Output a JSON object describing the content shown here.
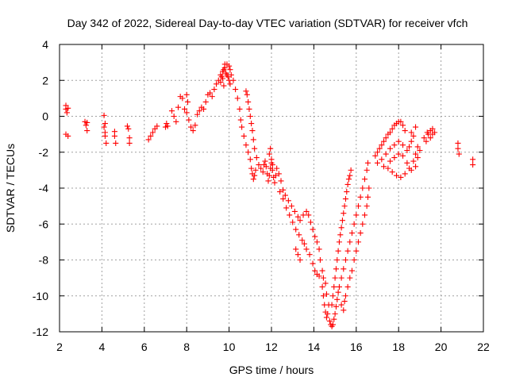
{
  "chart_data": {
    "type": "scatter",
    "title": "Day 342 of 2022, Sidereal Day-to-day VTEC variation (SDTVAR) for receiver vfch",
    "xlabel": "GPS time / hours",
    "ylabel": "SDTVAR / TECUs",
    "xlim": [
      2,
      22
    ],
    "ylim": [
      -12,
      4
    ],
    "xticks": [
      2,
      4,
      6,
      8,
      10,
      12,
      14,
      16,
      18,
      20,
      22
    ],
    "yticks": [
      4,
      2,
      0,
      -2,
      -4,
      -6,
      -8,
      -10,
      -12
    ],
    "grid": true,
    "marker": "plus",
    "series": [
      {
        "name": "SDTVAR",
        "color": "#ff0000",
        "points": [
          [
            2.3,
            0.6
          ],
          [
            2.3,
            0.4
          ],
          [
            2.35,
            0.2
          ],
          [
            2.4,
            0.45
          ],
          [
            2.3,
            -1.0
          ],
          [
            2.4,
            -1.1
          ],
          [
            3.2,
            -0.3
          ],
          [
            3.25,
            -0.5
          ],
          [
            3.3,
            -0.8
          ],
          [
            3.3,
            -0.35
          ],
          [
            4.1,
            0.05
          ],
          [
            4.1,
            -0.6
          ],
          [
            4.15,
            -0.9
          ],
          [
            4.15,
            -1.1
          ],
          [
            4.2,
            -1.5
          ],
          [
            4.15,
            -0.4
          ],
          [
            4.6,
            -0.85
          ],
          [
            4.6,
            -1.1
          ],
          [
            4.65,
            -1.5
          ],
          [
            5.2,
            -0.55
          ],
          [
            5.25,
            -0.7
          ],
          [
            5.3,
            -1.2
          ],
          [
            5.3,
            -1.5
          ],
          [
            6.2,
            -1.3
          ],
          [
            6.3,
            -1.1
          ],
          [
            6.4,
            -0.9
          ],
          [
            6.5,
            -0.7
          ],
          [
            6.6,
            -0.55
          ],
          [
            7.0,
            -0.6
          ],
          [
            7.05,
            -0.4
          ],
          [
            7.1,
            -0.55
          ],
          [
            7.3,
            0.3
          ],
          [
            7.4,
            0.0
          ],
          [
            7.5,
            -0.3
          ],
          [
            7.6,
            0.5
          ],
          [
            7.7,
            1.1
          ],
          [
            7.8,
            1.0
          ],
          [
            7.9,
            0.4
          ],
          [
            8.0,
            0.2
          ],
          [
            8.1,
            -0.2
          ],
          [
            8.2,
            -0.6
          ],
          [
            8.3,
            -0.8
          ],
          [
            8.4,
            -0.5
          ],
          [
            8.0,
            1.2
          ],
          [
            8.05,
            0.8
          ],
          [
            8.5,
            0.1
          ],
          [
            8.6,
            0.3
          ],
          [
            8.7,
            0.5
          ],
          [
            8.8,
            0.4
          ],
          [
            8.9,
            0.8
          ],
          [
            9.0,
            1.2
          ],
          [
            9.1,
            1.3
          ],
          [
            9.2,
            1.1
          ],
          [
            9.3,
            1.5
          ],
          [
            9.4,
            1.8
          ],
          [
            9.5,
            2.0
          ],
          [
            9.6,
            2.3
          ],
          [
            9.7,
            2.5
          ],
          [
            9.8,
            2.7
          ],
          [
            9.9,
            2.9
          ],
          [
            10.0,
            2.8
          ],
          [
            10.05,
            2.6
          ],
          [
            10.1,
            2.3
          ],
          [
            9.85,
            2.4
          ],
          [
            9.9,
            2.3
          ],
          [
            9.95,
            2.2
          ],
          [
            10.0,
            2.0
          ],
          [
            10.05,
            1.8
          ],
          [
            9.6,
            1.9
          ],
          [
            9.7,
            2.1
          ],
          [
            9.75,
            1.7
          ],
          [
            9.65,
            2.2
          ],
          [
            9.75,
            2.6
          ],
          [
            9.8,
            2.9
          ],
          [
            10.2,
            2.0
          ],
          [
            10.3,
            1.5
          ],
          [
            10.4,
            1.0
          ],
          [
            10.5,
            0.4
          ],
          [
            10.55,
            -0.2
          ],
          [
            10.6,
            -0.6
          ],
          [
            10.7,
            -1.1
          ],
          [
            10.8,
            -1.6
          ],
          [
            10.9,
            -2.0
          ],
          [
            11.0,
            -2.4
          ],
          [
            11.05,
            -2.9
          ],
          [
            11.1,
            -3.2
          ],
          [
            11.15,
            -3.5
          ],
          [
            11.2,
            -3.3
          ],
          [
            11.25,
            -3.0
          ],
          [
            10.8,
            1.4
          ],
          [
            10.85,
            1.2
          ],
          [
            10.9,
            0.8
          ],
          [
            10.95,
            0.4
          ],
          [
            11.0,
            0.0
          ],
          [
            11.05,
            -0.4
          ],
          [
            11.1,
            -0.8
          ],
          [
            11.15,
            -1.3
          ],
          [
            11.2,
            -1.8
          ],
          [
            11.3,
            -2.3
          ],
          [
            11.4,
            -2.7
          ],
          [
            11.5,
            -2.9
          ],
          [
            11.6,
            -3.1
          ],
          [
            11.65,
            -2.7
          ],
          [
            11.7,
            -2.5
          ],
          [
            11.75,
            -2.8
          ],
          [
            11.8,
            -3.2
          ],
          [
            11.85,
            -3.6
          ],
          [
            11.9,
            -3.3
          ],
          [
            11.95,
            -2.9
          ],
          [
            12.0,
            -2.6
          ],
          [
            12.05,
            -3.0
          ],
          [
            12.1,
            -3.4
          ],
          [
            12.15,
            -3.7
          ],
          [
            12.2,
            -3.3
          ],
          [
            12.25,
            -2.9
          ],
          [
            11.9,
            -2.1
          ],
          [
            11.95,
            -1.8
          ],
          [
            12.0,
            -2.4
          ],
          [
            12.05,
            -2.7
          ],
          [
            12.35,
            -3.2
          ],
          [
            12.45,
            -3.6
          ],
          [
            12.55,
            -4.1
          ],
          [
            12.65,
            -4.4
          ],
          [
            12.8,
            -4.7
          ],
          [
            12.95,
            -5.0
          ],
          [
            13.1,
            -5.3
          ],
          [
            13.25,
            -5.6
          ],
          [
            13.35,
            -5.8
          ],
          [
            13.5,
            -5.5
          ],
          [
            13.65,
            -5.3
          ],
          [
            13.75,
            -5.5
          ],
          [
            13.85,
            -5.9
          ],
          [
            13.95,
            -6.3
          ],
          [
            14.05,
            -6.7
          ],
          [
            14.15,
            -7.0
          ],
          [
            14.25,
            -7.4
          ],
          [
            14.3,
            -8.0
          ],
          [
            14.4,
            -8.6
          ],
          [
            14.45,
            -9.0
          ],
          [
            12.4,
            -4.2
          ],
          [
            12.55,
            -4.6
          ],
          [
            12.7,
            -5.1
          ],
          [
            12.85,
            -5.5
          ],
          [
            13.0,
            -5.9
          ],
          [
            13.15,
            -6.3
          ],
          [
            13.3,
            -6.6
          ],
          [
            13.45,
            -6.9
          ],
          [
            13.55,
            -7.1
          ],
          [
            13.65,
            -7.4
          ],
          [
            13.8,
            -7.7
          ],
          [
            13.95,
            -8.2
          ],
          [
            14.05,
            -8.6
          ],
          [
            14.15,
            -8.8
          ],
          [
            14.25,
            -8.9
          ],
          [
            13.15,
            -7.4
          ],
          [
            13.25,
            -7.7
          ],
          [
            13.35,
            -8.0
          ],
          [
            14.4,
            -9.5
          ],
          [
            14.45,
            -10.0
          ],
          [
            14.5,
            -10.5
          ],
          [
            14.55,
            -10.9
          ],
          [
            14.6,
            -11.2
          ],
          [
            14.65,
            -11.0
          ],
          [
            14.7,
            -10.5
          ],
          [
            14.6,
            -9.9
          ],
          [
            14.55,
            -9.3
          ],
          [
            14.75,
            -11.4
          ],
          [
            14.8,
            -11.6
          ],
          [
            14.85,
            -11.7
          ],
          [
            14.9,
            -11.6
          ],
          [
            14.95,
            -11.3
          ],
          [
            15.0,
            -11.0
          ],
          [
            15.05,
            -10.6
          ],
          [
            15.1,
            -10.2
          ],
          [
            15.15,
            -9.8
          ],
          [
            14.85,
            -10.5
          ],
          [
            14.9,
            -10.0
          ],
          [
            14.95,
            -9.5
          ],
          [
            15.0,
            -9.0
          ],
          [
            15.05,
            -8.5
          ],
          [
            15.1,
            -8.0
          ],
          [
            15.15,
            -7.5
          ],
          [
            15.2,
            -7.0
          ],
          [
            15.25,
            -6.6
          ],
          [
            15.3,
            -6.2
          ],
          [
            15.35,
            -5.8
          ],
          [
            15.4,
            -5.4
          ],
          [
            15.45,
            -5.0
          ],
          [
            15.5,
            -4.6
          ],
          [
            15.55,
            -4.2
          ],
          [
            15.6,
            -3.8
          ],
          [
            15.65,
            -3.5
          ],
          [
            15.7,
            -3.3
          ],
          [
            15.75,
            -3.0
          ],
          [
            15.2,
            -9.5
          ],
          [
            15.3,
            -9.0
          ],
          [
            15.4,
            -8.5
          ],
          [
            15.5,
            -8.0
          ],
          [
            15.6,
            -7.5
          ],
          [
            15.7,
            -7.0
          ],
          [
            15.8,
            -6.5
          ],
          [
            15.9,
            -6.0
          ],
          [
            16.0,
            -5.5
          ],
          [
            16.1,
            -5.0
          ],
          [
            16.2,
            -4.5
          ],
          [
            16.3,
            -4.0
          ],
          [
            16.4,
            -3.5
          ],
          [
            16.5,
            -3.0
          ],
          [
            16.55,
            -2.6
          ],
          [
            15.5,
            -10.0
          ],
          [
            15.6,
            -9.5
          ],
          [
            15.7,
            -9.0
          ],
          [
            15.8,
            -8.6
          ],
          [
            15.9,
            -8.0
          ],
          [
            16.0,
            -7.5
          ],
          [
            16.1,
            -7.0
          ],
          [
            16.2,
            -6.5
          ],
          [
            16.3,
            -6.0
          ],
          [
            16.4,
            -5.5
          ],
          [
            16.5,
            -5.0
          ],
          [
            16.55,
            -4.5
          ],
          [
            16.6,
            -4.0
          ],
          [
            15.3,
            -10.5
          ],
          [
            15.4,
            -10.8
          ],
          [
            15.45,
            -10.3
          ],
          [
            16.9,
            -2.2
          ],
          [
            17.0,
            -2.0
          ],
          [
            17.1,
            -1.8
          ],
          [
            17.2,
            -1.6
          ],
          [
            17.3,
            -1.4
          ],
          [
            17.4,
            -1.2
          ],
          [
            17.5,
            -1.0
          ],
          [
            17.6,
            -0.9
          ],
          [
            17.7,
            -0.7
          ],
          [
            17.8,
            -0.5
          ],
          [
            17.9,
            -0.4
          ],
          [
            18.0,
            -0.3
          ],
          [
            18.1,
            -0.3
          ],
          [
            18.2,
            -0.5
          ],
          [
            18.3,
            -0.8
          ],
          [
            17.0,
            -2.6
          ],
          [
            17.2,
            -2.4
          ],
          [
            17.4,
            -2.1
          ],
          [
            17.6,
            -1.8
          ],
          [
            17.8,
            -1.6
          ],
          [
            18.0,
            -1.4
          ],
          [
            18.2,
            -1.6
          ],
          [
            18.4,
            -1.9
          ],
          [
            18.5,
            -1.7
          ],
          [
            18.6,
            -1.4
          ],
          [
            17.3,
            -2.8
          ],
          [
            17.5,
            -2.9
          ],
          [
            17.7,
            -3.1
          ],
          [
            17.9,
            -3.3
          ],
          [
            18.1,
            -3.4
          ],
          [
            18.3,
            -3.2
          ],
          [
            18.5,
            -2.9
          ],
          [
            18.7,
            -2.5
          ],
          [
            18.8,
            -2.1
          ],
          [
            18.9,
            -1.7
          ],
          [
            17.6,
            -2.5
          ],
          [
            17.8,
            -2.3
          ],
          [
            18.0,
            -2.1
          ],
          [
            18.2,
            -2.2
          ],
          [
            18.4,
            -2.6
          ],
          [
            18.6,
            -3.0
          ],
          [
            18.8,
            -2.8
          ],
          [
            18.9,
            -2.3
          ],
          [
            19.0,
            -1.9
          ],
          [
            18.6,
            -0.9
          ],
          [
            18.7,
            -1.1
          ],
          [
            18.8,
            -0.6
          ],
          [
            19.2,
            -1.2
          ],
          [
            19.3,
            -1.4
          ],
          [
            19.4,
            -1.0
          ],
          [
            19.5,
            -0.8
          ],
          [
            19.6,
            -1.0
          ],
          [
            19.7,
            -0.9
          ],
          [
            19.5,
            -1.2
          ],
          [
            19.35,
            -0.9
          ],
          [
            19.6,
            -0.7
          ],
          [
            20.8,
            -1.5
          ],
          [
            20.8,
            -1.8
          ],
          [
            20.85,
            -2.1
          ],
          [
            21.5,
            -2.4
          ],
          [
            21.5,
            -2.7
          ]
        ]
      }
    ]
  }
}
